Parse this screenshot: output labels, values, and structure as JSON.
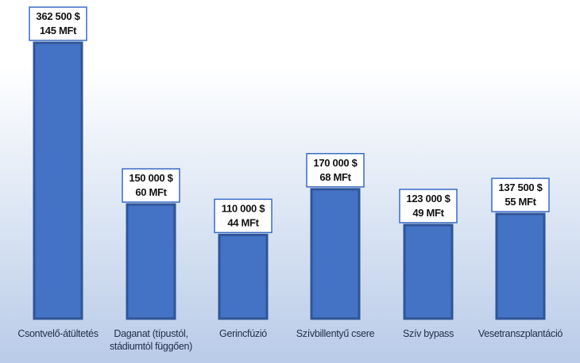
{
  "chart_data": {
    "type": "bar",
    "title": "",
    "xlabel": "",
    "ylabel": "",
    "grid": false,
    "legend": "none",
    "categories": [
      [
        "Csontvelő-átültetés"
      ],
      [
        "Daganat (típustól,",
        "stádiumtól függően)"
      ],
      [
        "Gerincfúzió"
      ],
      [
        "Szívbillentyű csere"
      ],
      [
        "Szív bypass"
      ],
      [
        "Vesetranszplantáció"
      ]
    ],
    "values": [
      362500,
      150000,
      110000,
      170000,
      123000,
      137500
    ],
    "data_labels": [
      [
        "362 500 $",
        "145 MFt"
      ],
      [
        "150 000 $",
        "60 MFt"
      ],
      [
        "110 000 $",
        "44 MFt"
      ],
      [
        "170 000 $",
        "68 MFt"
      ],
      [
        "123 000 $",
        "49 MFt"
      ],
      [
        "137 500 $",
        "55 MFt"
      ]
    ],
    "ylim": [
      0,
      362500
    ],
    "colors": {
      "bar": "#4472c4",
      "bar_edge": "#2f5597",
      "label_box_border": "#3a6bc5",
      "label_box_fill": "#ffffff"
    }
  }
}
